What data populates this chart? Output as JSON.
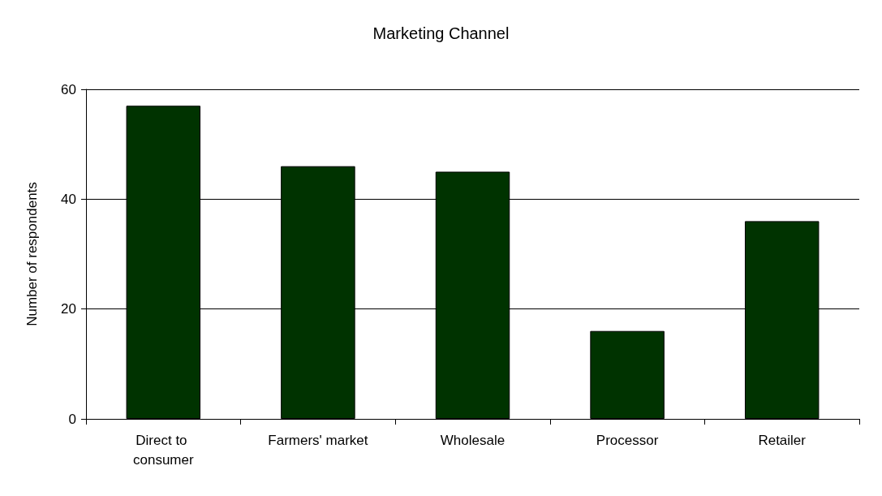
{
  "chart_data": {
    "type": "bar",
    "title": "Marketing Channel",
    "ylabel": "Number of respondents",
    "categories": [
      "Direct to consumer",
      "Farmers' market",
      "Wholesale",
      "Processor",
      "Retailer"
    ],
    "values": [
      57,
      46,
      45,
      16,
      36
    ],
    "color": "#003300",
    "ylim": [
      0,
      60
    ],
    "yticks": [
      0,
      20,
      40,
      60
    ],
    "grid": "y"
  }
}
